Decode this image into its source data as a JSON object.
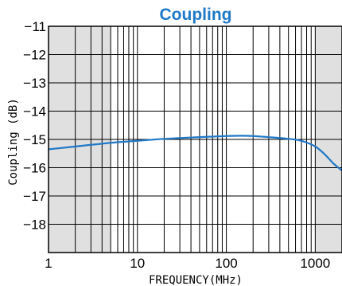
{
  "chart_data": {
    "type": "line",
    "title": "Coupling",
    "xlabel": "FREQUENCY(MHz)",
    "ylabel": "Coupling (dB)",
    "x_scale": "log",
    "xlim": [
      1,
      2000
    ],
    "ylim": [
      -19,
      -11
    ],
    "x_ticks": [
      1,
      10,
      100,
      1000
    ],
    "x_tick_labels": [
      "1",
      "10",
      "100",
      "1000"
    ],
    "y_ticks": [
      -11,
      -12,
      -13,
      -14,
      -15,
      -16,
      -17,
      -18
    ],
    "y_tick_labels": [
      "−11",
      "−12",
      "−13",
      "−14",
      "−15",
      "−16",
      "−17",
      "−18"
    ],
    "grid": true,
    "shaded_regions_x": [
      [
        1,
        5
      ],
      [
        1000,
        2000
      ]
    ],
    "series": [
      {
        "color": "#1f78c8",
        "x": [
          1,
          2,
          5,
          10,
          20,
          50,
          100,
          150,
          200,
          300,
          500,
          700,
          1000,
          1300,
          1600,
          2000
        ],
        "y": [
          -15.35,
          -15.25,
          -15.12,
          -15.05,
          -14.98,
          -14.92,
          -14.88,
          -14.87,
          -14.88,
          -14.92,
          -14.98,
          -15.05,
          -15.25,
          -15.55,
          -15.85,
          -16.1
        ]
      }
    ]
  },
  "colors": {
    "title": "#1f78c8",
    "shade": "#e0e0e0",
    "grid": "#000000",
    "line": "#1f78c8"
  }
}
